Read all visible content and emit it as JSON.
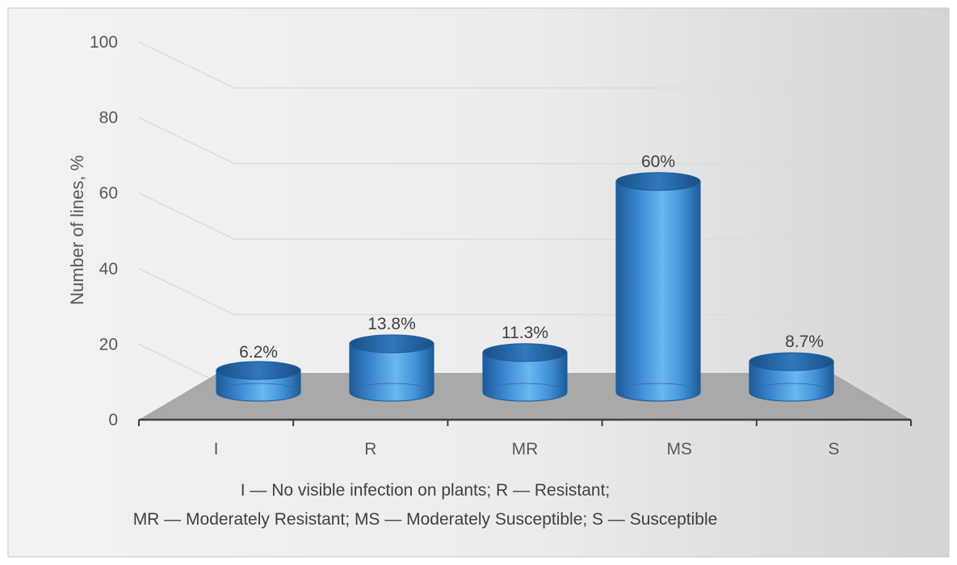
{
  "chart_data": {
    "type": "bar",
    "style": "3d-cylinder",
    "categories": [
      "I",
      "R",
      "MR",
      "MS",
      "S"
    ],
    "values": [
      6.2,
      13.8,
      11.3,
      60,
      8.7
    ],
    "data_labels": [
      "6.2%",
      "13.8%",
      "11.3%",
      "60%",
      "8.7%"
    ],
    "ylabel": "Number  of  lines, %",
    "ylim": [
      0,
      100
    ],
    "yticks": [
      0,
      20,
      40,
      60,
      80,
      100
    ],
    "grid": true,
    "legend": "none",
    "bar_color": "#4a9fe0",
    "bar_edge_color": "#1f5f9e",
    "floor_color": "#a6a6a6"
  },
  "notes": {
    "line1": "I — No visible infection on plants; R — Resistant;",
    "line2": "MR — Moderately Resistant; MS — Moderately Susceptible; S — Susceptible"
  }
}
